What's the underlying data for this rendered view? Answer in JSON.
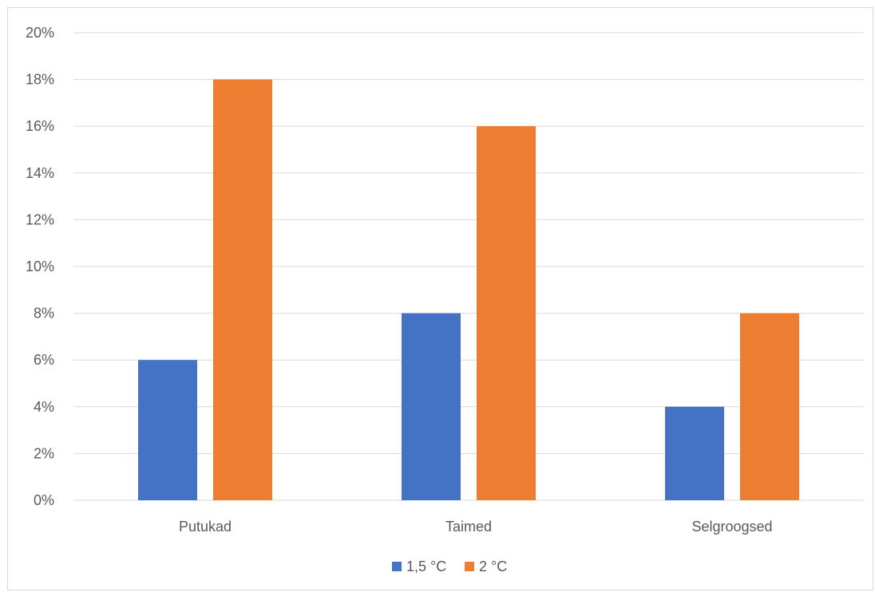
{
  "chart_data": {
    "type": "bar",
    "categories": [
      "Putukad",
      "Taimed",
      "Selgroogsed"
    ],
    "series": [
      {
        "name": "1,5 °C",
        "values": [
          6,
          8,
          4
        ],
        "color": "#4472c4"
      },
      {
        "name": "2 °C",
        "values": [
          18,
          16,
          8
        ],
        "color": "#ed7d31"
      }
    ],
    "y_ticks": [
      "0%",
      "2%",
      "4%",
      "6%",
      "8%",
      "10%",
      "12%",
      "14%",
      "16%",
      "18%",
      "20%"
    ],
    "ylim": [
      0,
      20
    ],
    "y_unit": "%",
    "grid": true,
    "legend_position": "bottom",
    "gridline_color": "#d9d9d9",
    "text_color": "#595959"
  }
}
